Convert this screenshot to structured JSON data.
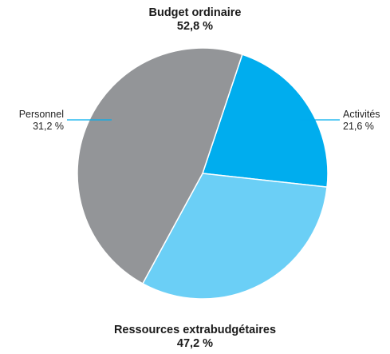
{
  "chart_data": {
    "type": "pie",
    "groups": [
      {
        "title": "Budget ordinaire",
        "percent": "52,8 %"
      },
      {
        "title": "Ressources extrabudgétaires",
        "percent": "47,2 %"
      }
    ],
    "slices": [
      {
        "label": "Activités",
        "value": 21.6,
        "value_label": "21,6 %",
        "color": "#00adee",
        "group": "Budget ordinaire"
      },
      {
        "label": "Personnel",
        "value": 31.2,
        "value_label": "31,2 %",
        "color": "#6bcff6",
        "group": "Budget ordinaire"
      },
      {
        "label": "",
        "value": 47.2,
        "value_label": "",
        "color": "#939598",
        "group": "Ressources extrabudgétaires"
      }
    ],
    "leader_line_color": "#00adee",
    "separator_color": "#ffffff"
  }
}
